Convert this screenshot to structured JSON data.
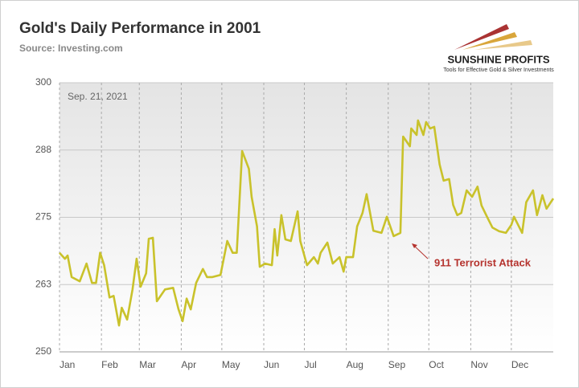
{
  "chart_data": {
    "type": "line",
    "title": "Gold's Daily Performance in 2001",
    "subtitle": "Source: Investing.com",
    "date_note": "Sep. 21, 2021",
    "annotation": "911 Terrorist Attack",
    "brand": "SUNSHINE PROFITS",
    "brand_tagline": "Tools for Effective Gold & Silver Investments",
    "x": [
      0,
      4,
      6,
      9,
      15,
      20,
      24,
      27,
      30,
      33,
      37,
      40,
      44,
      46,
      50,
      54,
      57,
      60,
      64,
      66,
      69,
      72,
      78,
      84,
      88,
      91,
      94,
      97,
      101,
      106,
      109,
      113,
      119,
      124,
      128,
      131,
      135,
      140,
      142,
      146,
      148,
      152,
      157,
      159,
      161,
      164,
      167,
      171,
      176,
      178,
      183,
      188,
      191,
      193,
      198,
      202,
      207,
      210,
      212,
      217,
      220,
      224,
      227,
      232,
      238,
      242,
      247,
      252,
      254,
      259,
      260,
      264,
      265,
      269,
      271,
      274,
      277,
      281,
      284,
      288,
      291,
      294,
      297,
      301,
      305,
      309,
      312,
      316,
      320,
      325,
      330,
      334,
      336,
      342,
      345,
      350,
      353,
      357,
      360,
      365
    ],
    "series": [
      {
        "name": "Gold",
        "color": "#c9c22b",
        "values": [
          268.4,
          267.3,
          267.9,
          263.9,
          263.1,
          266.4,
          262.8,
          262.8,
          268.4,
          266.1,
          260.1,
          260.4,
          254.9,
          258.2,
          256.0,
          261.6,
          267.3,
          262.1,
          264.6,
          271.0,
          271.2,
          259.4,
          261.6,
          261.9,
          257.9,
          255.7,
          259.9,
          257.9,
          262.8,
          265.4,
          263.9,
          263.9,
          264.3,
          270.6,
          268.4,
          268.4,
          287.3,
          284.0,
          278.8,
          273.3,
          265.8,
          266.4,
          266.1,
          272.8,
          267.9,
          275.4,
          270.9,
          270.6,
          276.1,
          270.6,
          266.1,
          267.6,
          266.4,
          268.4,
          270.3,
          266.4,
          267.6,
          264.9,
          267.6,
          267.6,
          273.3,
          275.8,
          279.3,
          272.5,
          272.1,
          275.1,
          271.5,
          272.1,
          290.0,
          288.2,
          291.5,
          290.3,
          293.0,
          290.3,
          292.7,
          291.5,
          291.8,
          284.8,
          281.8,
          282.1,
          277.3,
          275.4,
          275.8,
          280.0,
          278.8,
          280.7,
          277.2,
          275.1,
          273.1,
          272.4,
          272.1,
          273.6,
          275.1,
          272.1,
          277.8,
          280.0,
          275.4,
          279.1,
          276.6,
          278.5
        ]
      }
    ],
    "xlim": [
      0,
      365
    ],
    "xticks": [
      {
        "value": 0,
        "label": "Jan"
      },
      {
        "value": 31,
        "label": "Feb"
      },
      {
        "value": 59,
        "label": "Mar"
      },
      {
        "value": 90,
        "label": "Apr"
      },
      {
        "value": 120,
        "label": "May"
      },
      {
        "value": 151,
        "label": "Jun"
      },
      {
        "value": 181,
        "label": "Jul"
      },
      {
        "value": 212,
        "label": "Aug"
      },
      {
        "value": 243,
        "label": "Sep"
      },
      {
        "value": 273,
        "label": "Oct"
      },
      {
        "value": 304,
        "label": "Nov"
      },
      {
        "value": 334,
        "label": "Dec"
      }
    ],
    "ylim": [
      250,
      300
    ],
    "yticks": [
      250,
      {
        "value": 262.5,
        "label": "263"
      },
      275,
      {
        "value": 287.5,
        "label": "288"
      },
      300
    ],
    "grid": true
  }
}
